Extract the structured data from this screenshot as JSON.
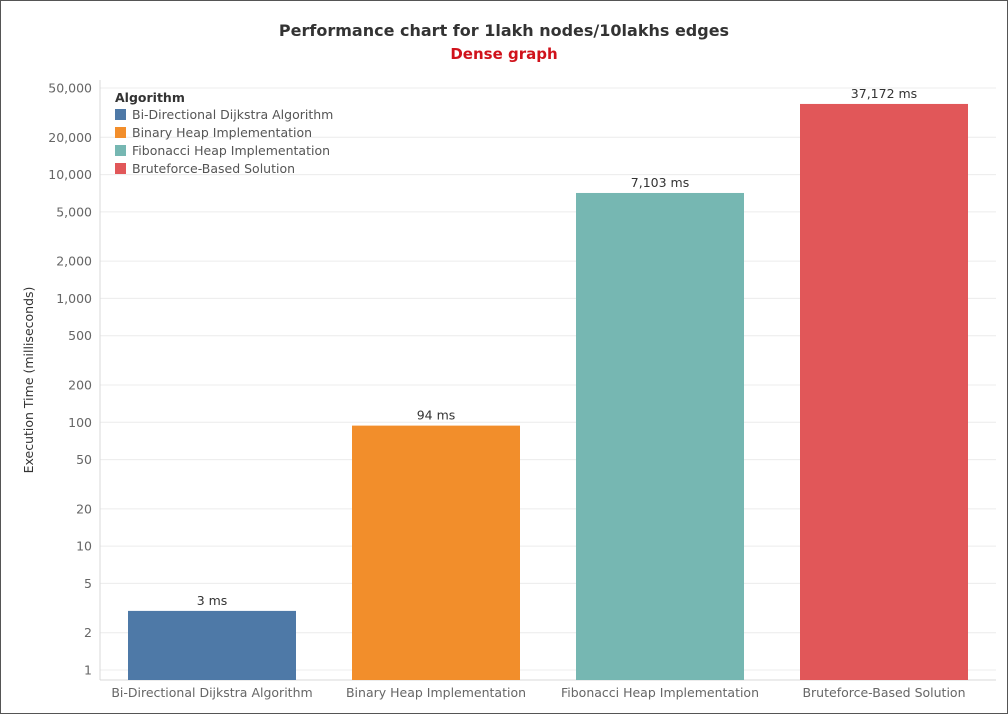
{
  "chart_data": {
    "type": "bar",
    "title": "Performance chart for 1lakh nodes/10lakhs edges",
    "subtitle": "Dense graph",
    "ylabel": "Execution Time (milliseconds)",
    "xlabel": "",
    "yscale": "log",
    "ylim": [
      1,
      50000
    ],
    "yticks": [
      1,
      2,
      5,
      10,
      20,
      50,
      100,
      200,
      500,
      1000,
      2000,
      5000,
      10000,
      20000,
      50000
    ],
    "ytick_labels": [
      "1",
      "2",
      "5",
      "10",
      "20",
      "50",
      "100",
      "200",
      "500",
      "1,000",
      "2,000",
      "5,000",
      "10,000",
      "20,000",
      "50,000"
    ],
    "categories": [
      "Bi-Directional Dijkstra Algorithm",
      "Binary Heap Implementation",
      "Fibonacci Heap Implementation",
      "Bruteforce-Based Solution"
    ],
    "values": [
      3,
      94,
      7103,
      37172
    ],
    "data_labels": [
      "3 ms",
      "94 ms",
      "7,103 ms",
      "37,172 ms"
    ],
    "colors": [
      "#4e79a7",
      "#f28e2b",
      "#76b7b2",
      "#e15759"
    ],
    "grid": true,
    "legend": {
      "title": "Algorithm",
      "placement": "top-left",
      "entries": [
        "Bi-Directional Dijkstra Algorithm",
        "Binary Heap Implementation",
        "Fibonacci Heap Implementation",
        "Bruteforce-Based Solution"
      ]
    }
  }
}
